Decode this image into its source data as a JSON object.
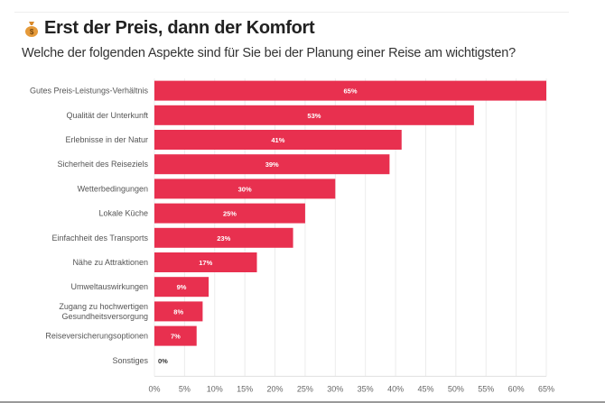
{
  "header": {
    "title": "Erst der Preis, dann der Komfort",
    "title_icon": "money-bag-icon",
    "subtitle": "Welche der folgenden Aspekte sind für Sie bei der Planung einer Reise am wichtigsten?"
  },
  "chart_data": {
    "type": "bar",
    "orientation": "horizontal",
    "categories": [
      "Gutes Preis-Leistungs-Verhältnis",
      "Qualität der Unterkunft",
      "Erlebnisse in der Natur",
      "Sicherheit des Reiseziels",
      "Wetterbedingungen",
      "Lokale Küche",
      "Einfachheit des Transports",
      "Nähe zu Attraktionen",
      "Umweltauswirkungen",
      "Zugang zu hochwertigen Gesundheitsversorgung",
      "Reiseversicherungsoptionen",
      "Sonstiges"
    ],
    "values": [
      65,
      53,
      41,
      39,
      30,
      25,
      23,
      17,
      9,
      8,
      7,
      0
    ],
    "data_labels": [
      "65%",
      "53%",
      "41%",
      "39%",
      "30%",
      "25%",
      "23%",
      "17%",
      "9%",
      "8%",
      "7%",
      "0%"
    ],
    "xlim": [
      0,
      65
    ],
    "x_ticks": [
      "0%",
      "5%",
      "10%",
      "15%",
      "20%",
      "25%",
      "30%",
      "35%",
      "40%",
      "45%",
      "50%",
      "55%",
      "60%",
      "65%"
    ],
    "grid": true,
    "bar_color": "#e8304f"
  }
}
